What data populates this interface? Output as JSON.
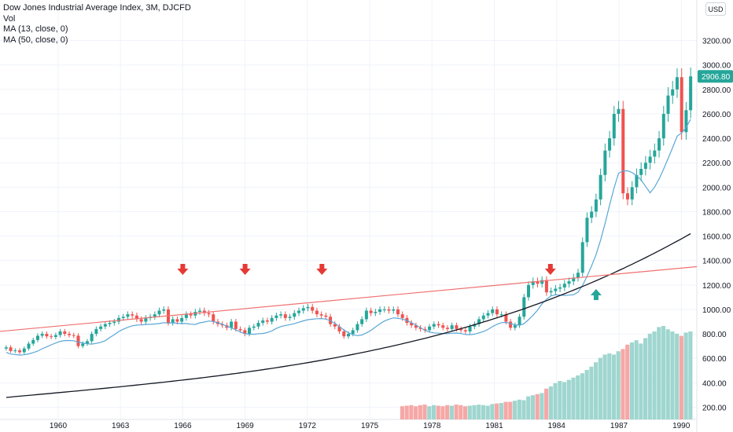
{
  "legend": {
    "title": "Dow Jones Industrial Average Index, 3M, DJCFD",
    "vol": "Vol",
    "ma13": "MA (13, close, 0)",
    "ma50": "MA (50, close, 0)"
  },
  "currency": "USD",
  "price_label": "2906.80",
  "colors": {
    "up": "#26a69a",
    "down": "#ef5350",
    "ma13": "#5aa7d6",
    "ma50": "#131722",
    "trend": "#f07070",
    "vol_up": "#9fd6cf",
    "vol_down": "#f5a8a6",
    "arrow_down": "#e53935",
    "arrow_up": "#26a69a"
  },
  "chart_data": {
    "type": "candlestick",
    "y_ticks": [
      200,
      400,
      600,
      800,
      1000,
      1200,
      1400,
      1600,
      1800,
      2000,
      2200,
      2400,
      2600,
      2800,
      3000,
      3200
    ],
    "y_tick_labels": [
      "200.00",
      "400.00",
      "600.00",
      "800.00",
      "1000.00",
      "1200.00",
      "1400.00",
      "1600.00",
      "1800.00",
      "2000.00",
      "2200.00",
      "2400.00",
      "2600.00",
      "2800.00",
      "3000.00",
      "3200.00"
    ],
    "x_ticks": [
      1960,
      1963,
      1966,
      1969,
      1972,
      1975,
      1978,
      1981,
      1984,
      1987,
      1990
    ],
    "x_range": [
      1957.2,
      1990.75
    ],
    "closes": [
      690,
      660,
      665,
      650,
      680,
      720,
      750,
      785,
      800,
      780,
      775,
      790,
      820,
      800,
      790,
      785,
      700,
      720,
      740,
      800,
      840,
      860,
      880,
      890,
      900,
      930,
      940,
      960,
      950,
      920,
      900,
      930,
      940,
      960,
      990,
      1000,
      890,
      920,
      900,
      930,
      960,
      950,
      980,
      990,
      970,
      960,
      900,
      880,
      870,
      850,
      900,
      840,
      830,
      800,
      850,
      860,
      890,
      910,
      900,
      930,
      950,
      960,
      930,
      940,
      970,
      990,
      1010,
      1020,
      990,
      960,
      950,
      940,
      880,
      860,
      820,
      780,
      800,
      830,
      880,
      920,
      990,
      970,
      980,
      1000,
      1000,
      990,
      1000,
      960,
      930,
      890,
      870,
      850,
      840,
      830,
      860,
      880,
      870,
      850,
      840,
      870,
      840,
      830,
      820,
      860,
      880,
      920,
      950,
      970,
      1000,
      960,
      960,
      900,
      850,
      870,
      940,
      1100,
      1200,
      1230,
      1210,
      1240,
      1140,
      1150,
      1170,
      1180,
      1210,
      1230,
      1260,
      1300,
      1550,
      1750,
      1800,
      1900,
      2100,
      2300,
      2400,
      2600,
      2640,
      1950,
      1900,
      2000,
      2100,
      2150,
      2200,
      2250,
      2300,
      2400,
      2600,
      2750,
      2800,
      2900,
      2450,
      2630,
      2906.8
    ],
    "volumes": [
      120,
      125,
      130,
      120,
      130,
      135,
      120,
      130,
      125,
      120,
      130,
      125,
      135,
      130,
      120,
      125,
      130,
      135,
      130,
      125,
      140,
      145,
      150,
      160,
      160,
      170,
      180,
      175,
      210,
      220,
      230,
      240,
      280,
      300,
      330,
      350,
      340,
      360,
      380,
      400,
      420,
      450,
      480,
      520,
      560,
      590,
      600,
      590,
      620,
      640,
      680,
      700,
      720,
      690,
      740,
      780,
      800,
      840,
      850,
      820,
      800,
      780,
      760,
      790,
      800
    ],
    "ma50_start": 280,
    "ma50_end": 1620,
    "trendline": {
      "from": [
        1957.2,
        820
      ],
      "to": [
        1990.75,
        1350
      ]
    },
    "down_arrows_years": [
      1966.0,
      1969.0,
      1972.7,
      1983.7
    ],
    "up_arrow_year": 1985.9
  }
}
